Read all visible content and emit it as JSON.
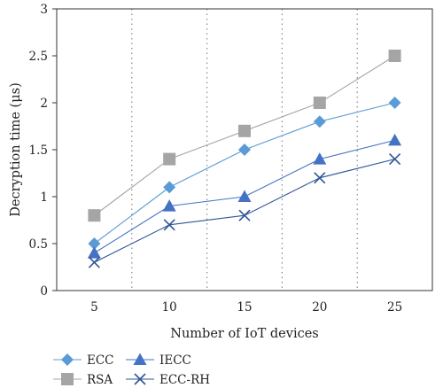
{
  "chart_data": {
    "type": "line",
    "x": [
      5,
      10,
      15,
      20,
      25
    ],
    "xlabel": "Number of IoT devices",
    "ylabel": "Decryption time (μs)",
    "xlim": [
      2.5,
      27.5
    ],
    "ylim": [
      0,
      3
    ],
    "x_ticks": [
      "5",
      "10",
      "15",
      "20",
      "25"
    ],
    "y_ticks": [
      "0",
      "0.5",
      "1",
      "1.5",
      "2",
      "2.5",
      "3"
    ],
    "grid": "vertical dotted separators between categories",
    "series": [
      {
        "name": "ECC",
        "values": [
          0.5,
          1.1,
          1.5,
          1.8,
          2.0
        ],
        "color": "#5B9BD5",
        "marker": "diamond"
      },
      {
        "name": "RSA",
        "values": [
          0.8,
          1.4,
          1.7,
          2.0,
          2.5
        ],
        "color": "#A5A5A5",
        "marker": "square"
      },
      {
        "name": "IECC",
        "values": [
          0.4,
          0.9,
          1.0,
          1.4,
          1.6
        ],
        "color": "#4472C4",
        "marker": "triangle"
      },
      {
        "name": "ECC-RH",
        "values": [
          0.3,
          0.7,
          0.8,
          1.2,
          1.4
        ],
        "color": "#2F5597",
        "marker": "x"
      }
    ],
    "legend_position": "bottom-left",
    "legend_order": [
      "ECC",
      "IECC",
      "RSA",
      "ECC-RH"
    ]
  }
}
